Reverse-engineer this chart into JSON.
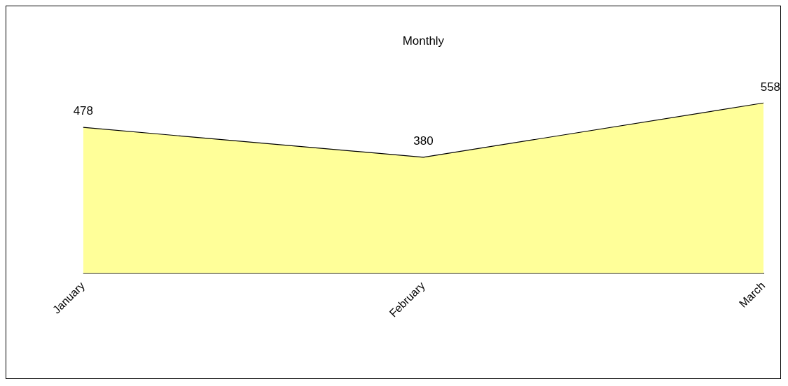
{
  "chart_data": {
    "type": "area",
    "title": "Monthly",
    "categories": [
      "January",
      "February",
      "March"
    ],
    "series": [
      {
        "color": "#ffff99",
        "values": [
          478,
          380,
          558
        ]
      }
    ],
    "data_labels": true,
    "grid": false,
    "legend": false
  }
}
